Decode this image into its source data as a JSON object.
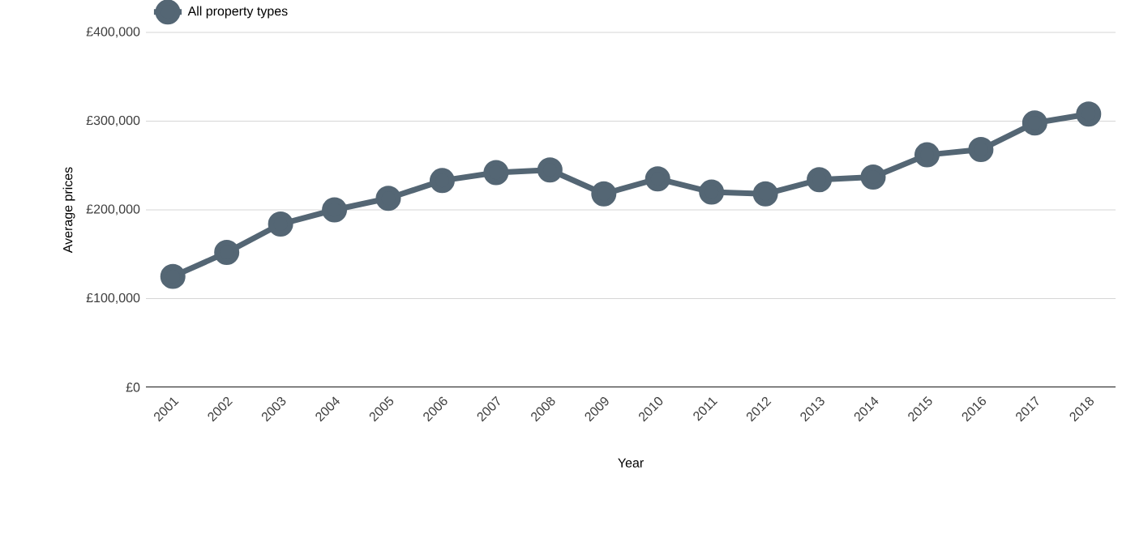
{
  "chart_data": {
    "type": "line",
    "xlabel": "Year",
    "ylabel": "Average prices",
    "categories": [
      "2001",
      "2002",
      "2003",
      "2004",
      "2005",
      "2006",
      "2007",
      "2008",
      "2009",
      "2010",
      "2011",
      "2012",
      "2013",
      "2014",
      "2015",
      "2016",
      "2017",
      "2018"
    ],
    "series": [
      {
        "name": "All property types",
        "color": "#546674",
        "values": [
          125000,
          152000,
          184000,
          200000,
          213000,
          233000,
          242000,
          245000,
          218000,
          235000,
          220000,
          218000,
          234000,
          237000,
          262000,
          268000,
          298000,
          308000
        ]
      }
    ],
    "ylim": [
      0,
      400000
    ],
    "yticks": [
      {
        "value": 0,
        "label": "£0"
      },
      {
        "value": 100000,
        "label": "£100,000"
      },
      {
        "value": 200000,
        "label": "£200,000"
      },
      {
        "value": 300000,
        "label": "£300,000"
      },
      {
        "value": 400000,
        "label": "£400,000"
      }
    ],
    "grid": "y",
    "legend": "top left",
    "marker": "circle",
    "line_style": "solid"
  }
}
